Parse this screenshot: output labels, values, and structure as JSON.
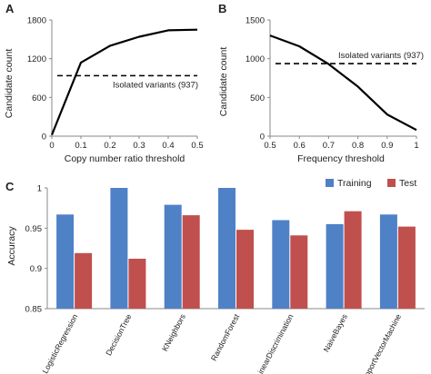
{
  "colors": {
    "training": "#4f81c7",
    "test": "#c0504d",
    "line": "#000000",
    "axis": "#888888"
  },
  "chart_data": [
    {
      "panel": "A",
      "type": "line",
      "xlabel": "Copy number ratio threshold",
      "ylabel": "Candidate count",
      "xlim": [
        0,
        0.5
      ],
      "ylim": [
        0,
        1800
      ],
      "xticks": [
        "0",
        "0.1",
        "0.2",
        "0.3",
        "0.4",
        "0.5"
      ],
      "yticks": [
        "0",
        "600",
        "1200",
        "1800"
      ],
      "x": [
        0,
        0.1,
        0.2,
        0.3,
        0.4,
        0.5
      ],
      "y": [
        20,
        1140,
        1400,
        1540,
        1640,
        1650
      ],
      "reference": {
        "label": "Isolated variants (937)",
        "value": 937
      }
    },
    {
      "panel": "B",
      "type": "line",
      "xlabel": "Frequency threshold",
      "ylabel": "Candidate count",
      "xlim": [
        0.5,
        1
      ],
      "ylim": [
        0,
        1500
      ],
      "xticks": [
        "0.5",
        "0.6",
        "0.7",
        "0.8",
        "0.9",
        "1"
      ],
      "yticks": [
        "0",
        "500",
        "1000",
        "1500"
      ],
      "x": [
        0.5,
        0.6,
        0.7,
        0.8,
        0.9,
        1.0
      ],
      "y": [
        1300,
        1160,
        930,
        640,
        280,
        80
      ],
      "reference": {
        "label": "Isolated variants (937)",
        "value": 937
      }
    },
    {
      "panel": "C",
      "type": "bar",
      "ylabel": "Accuracy",
      "ylim": [
        0.85,
        1
      ],
      "yticks": [
        "0.85",
        "0.9",
        "0.95",
        "1"
      ],
      "legend_position": "top-right",
      "categories": [
        "LogisticRegression",
        "DecisionTree",
        "KNeighbors",
        "RandomForest",
        "LinearDiscrimination",
        "NaiveBayes",
        "SupportVectorMachine"
      ],
      "series": [
        {
          "name": "Training",
          "values": [
            0.967,
            1.0,
            0.979,
            1.0,
            0.96,
            0.955,
            0.967
          ]
        },
        {
          "name": "Test",
          "values": [
            0.919,
            0.912,
            0.966,
            0.948,
            0.941,
            0.971,
            0.952
          ]
        }
      ]
    }
  ]
}
